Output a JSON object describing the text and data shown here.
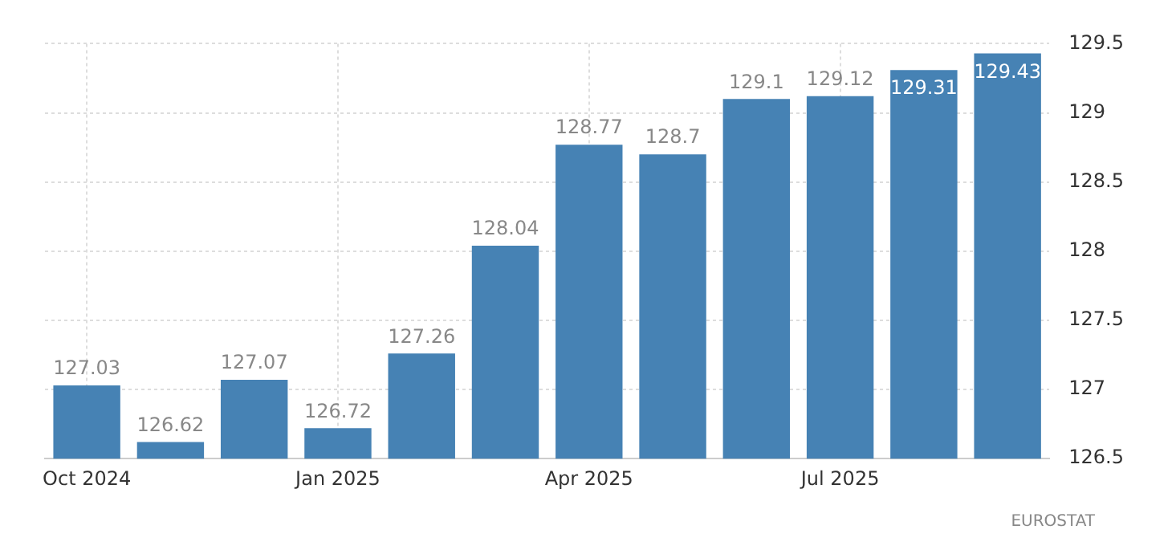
{
  "chart_data": {
    "type": "bar",
    "categories": [
      "Oct 2024",
      null,
      null,
      "Jan 2025",
      null,
      null,
      "Apr 2025",
      null,
      null,
      "Jul 2025",
      null,
      null
    ],
    "values": [
      127.03,
      126.62,
      127.07,
      126.72,
      127.26,
      128.04,
      128.77,
      128.7,
      129.1,
      129.12,
      129.31,
      129.43
    ],
    "color": "#4682b4",
    "ylim": [
      126.5,
      129.5
    ],
    "yticks": [
      126.5,
      127,
      127.5,
      128,
      128.5,
      129,
      129.5
    ],
    "grid": true,
    "data_labels": true,
    "annotations": [
      "EUROSTAT"
    ]
  }
}
